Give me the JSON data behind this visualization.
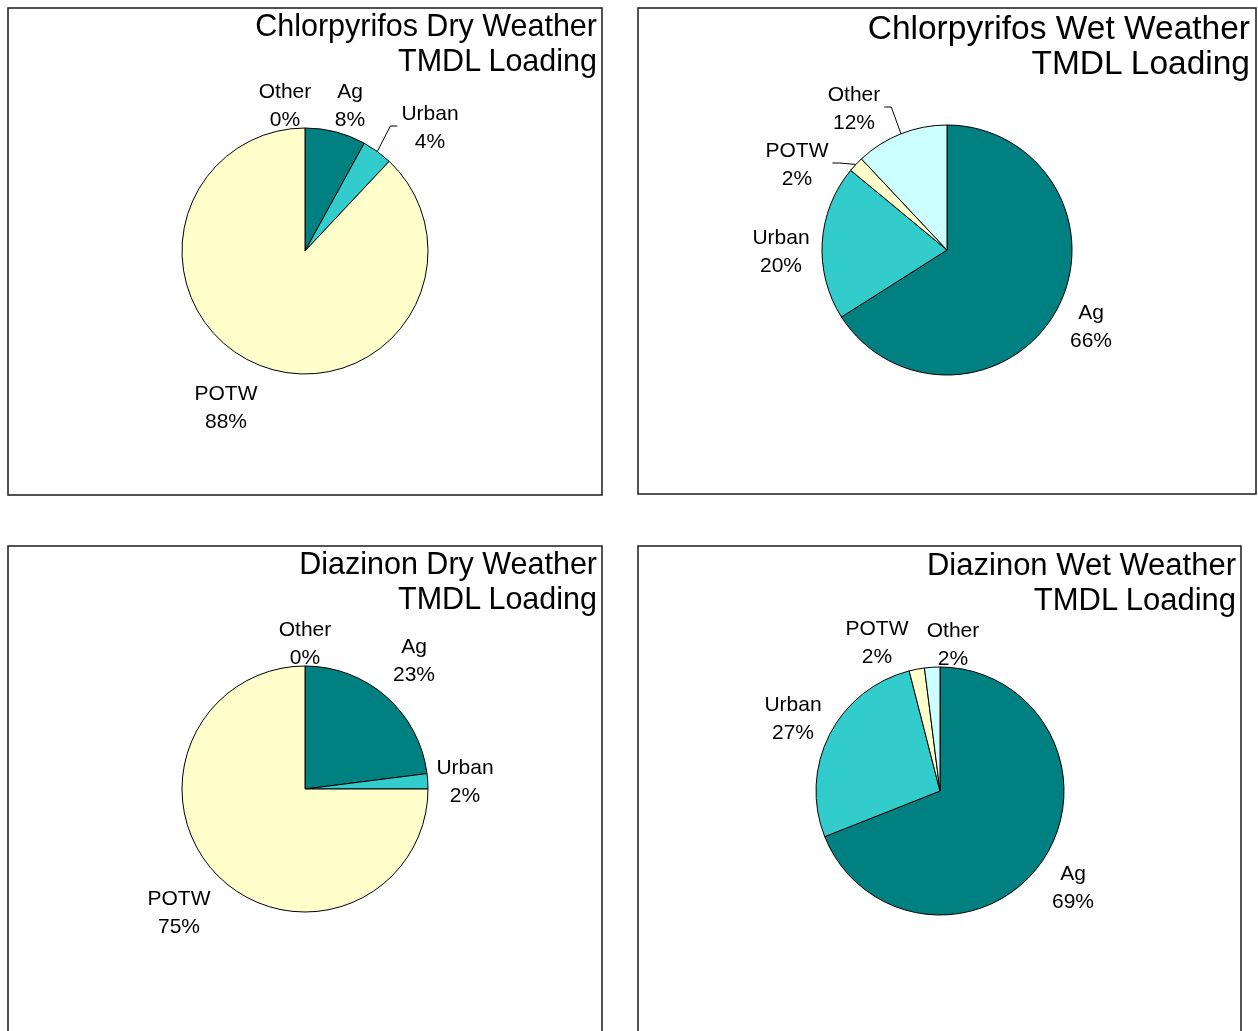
{
  "chart_data": [
    {
      "type": "pie",
      "title": "Chlorpyrifos Dry Weather TMDL Loading",
      "categories": [
        "Ag",
        "Urban",
        "POTW",
        "Other"
      ],
      "values": [
        8,
        4,
        88,
        0
      ],
      "value_labels": [
        "8%",
        "4%",
        "88%",
        "0%"
      ],
      "colors": [
        "#008080",
        "#33cccc",
        "#ffffcc",
        "#ccffff"
      ]
    },
    {
      "type": "pie",
      "title": "Chlorpyrifos Wet Weather TMDL Loading",
      "categories": [
        "Ag",
        "Urban",
        "POTW",
        "Other"
      ],
      "values": [
        66,
        20,
        2,
        12
      ],
      "value_labels": [
        "66%",
        "20%",
        "2%",
        "12%"
      ],
      "colors": [
        "#008080",
        "#33cccc",
        "#ffffcc",
        "#ccffff"
      ]
    },
    {
      "type": "pie",
      "title": "Diazinon Dry Weather TMDL Loading",
      "categories": [
        "Ag",
        "Urban",
        "POTW",
        "Other"
      ],
      "values": [
        23,
        2,
        75,
        0
      ],
      "value_labels": [
        "23%",
        "2%",
        "75%",
        "0%"
      ],
      "colors": [
        "#008080",
        "#33cccc",
        "#ffffcc",
        "#ccffff"
      ]
    },
    {
      "type": "pie",
      "title": "Diazinon Wet Weather TMDL Loading",
      "categories": [
        "Ag",
        "Urban",
        "POTW",
        "Other"
      ],
      "values": [
        69,
        27,
        2,
        2
      ],
      "value_labels": [
        "69%",
        "27%",
        "2%",
        "2%"
      ],
      "colors": [
        "#008080",
        "#33cccc",
        "#ffffcc",
        "#ccffff"
      ]
    }
  ]
}
